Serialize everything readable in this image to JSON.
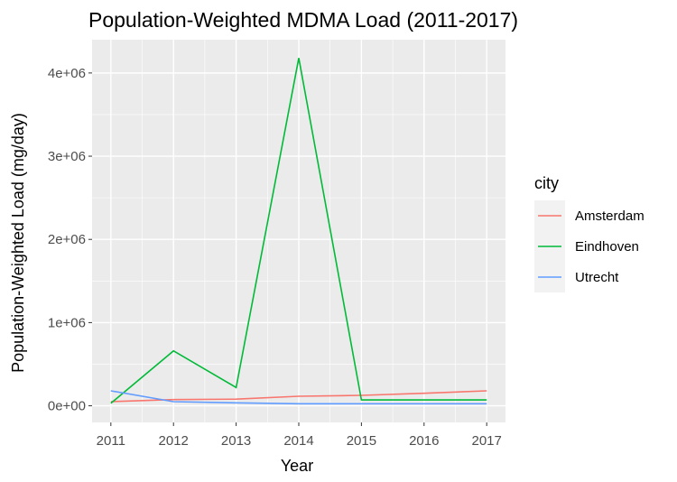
{
  "chart_data": {
    "type": "line",
    "title": "Population-Weighted MDMA Load (2011-2017)",
    "xlabel": "Year",
    "ylabel": "Population-Weighted Load (mg/day)",
    "x": [
      2011,
      2012,
      2013,
      2014,
      2015,
      2016,
      2017
    ],
    "x_tick_labels": [
      "2011",
      "2012",
      "2013",
      "2014",
      "2015",
      "2016",
      "2017"
    ],
    "xlim": [
      2010.7,
      2017.3
    ],
    "ylim": [
      -200000,
      4400000
    ],
    "y_ticks": [
      0,
      1000000,
      2000000,
      3000000,
      4000000
    ],
    "y_tick_labels": [
      "0e+00",
      "1e+06",
      "2e+06",
      "3e+06",
      "4e+06"
    ],
    "grid": true,
    "legend": {
      "title": "city",
      "position": "right"
    },
    "series": [
      {
        "name": "Amsterdam",
        "color": "#F8766D",
        "values": [
          50000,
          75000,
          80000,
          115000,
          125000,
          150000,
          180000
        ]
      },
      {
        "name": "Eindhoven",
        "color": "#00BA38",
        "values": [
          30000,
          660000,
          220000,
          4180000,
          70000,
          70000,
          70000
        ]
      },
      {
        "name": "Utrecht",
        "color": "#619CFF",
        "values": [
          180000,
          50000,
          35000,
          25000,
          25000,
          25000,
          25000
        ]
      }
    ]
  },
  "colors": {
    "panel_background": "#EBEBEB",
    "grid_major": "#FFFFFF",
    "legend_key_background": "#F2F2F2"
  }
}
